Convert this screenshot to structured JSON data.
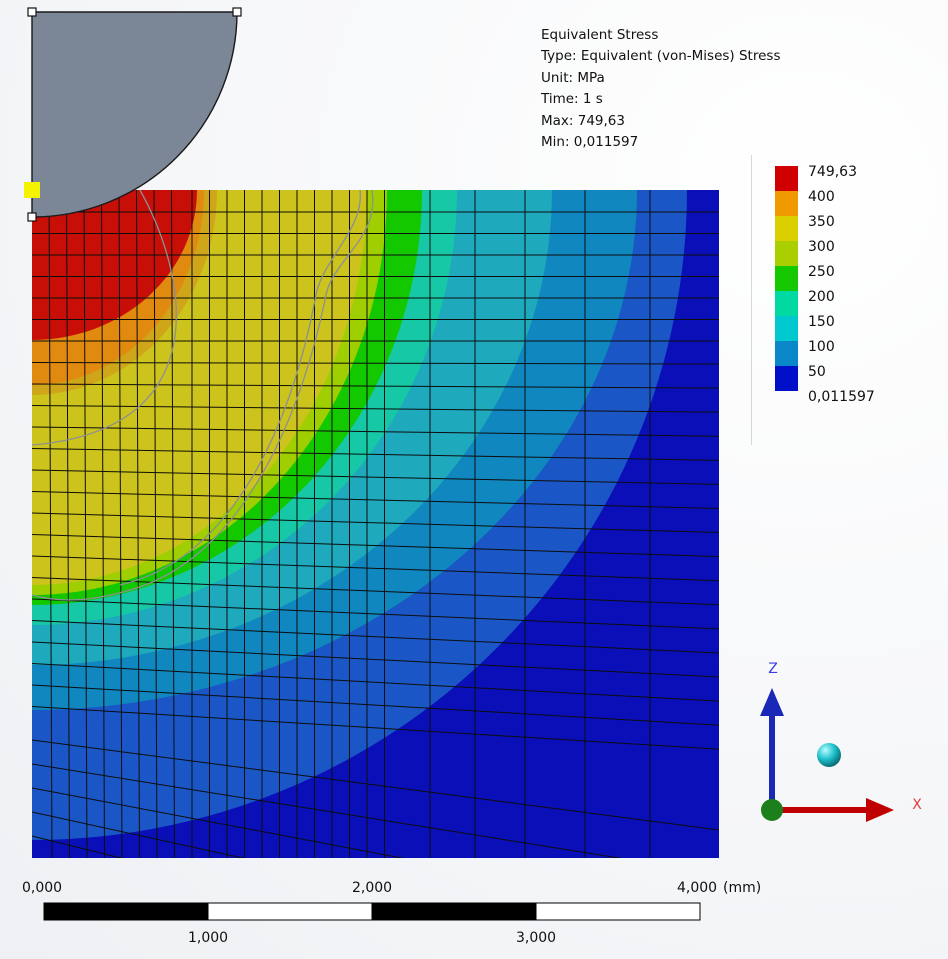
{
  "info": {
    "title": "Equivalent Stress",
    "type": "Type: Equivalent (von-Mises) Stress",
    "unit": "Unit: MPa",
    "time": "Time: 1 s",
    "max": "Max: 749,63",
    "min": "Min: 0,011597"
  },
  "legend": {
    "labels": [
      "749,63",
      "400",
      "350",
      "300",
      "250",
      "200",
      "150",
      "100",
      "50",
      "0,011597"
    ],
    "colors": [
      "#d10000",
      "#ee9a00",
      "#dccf00",
      "#a9cf00",
      "#16c800",
      "#00d9a2",
      "#00c8cf",
      "#0a87c8",
      "#0010c8"
    ]
  },
  "contour_colors": [
    "#0a0fb8",
    "#1a56c6",
    "#1187bf",
    "#1ea9bd",
    "#16c8a5",
    "#14c800",
    "#9fcf00",
    "#ccc41c",
    "#cfa519",
    "#e08a10",
    "#c70f08"
  ],
  "scale": {
    "top_labels": [
      "0,000",
      "2,000",
      "4,000"
    ],
    "unit": "(mm)",
    "bottom_labels": [
      "1,000",
      "3,000"
    ]
  },
  "axes": {
    "x_label": "X",
    "z_label": "Z"
  }
}
